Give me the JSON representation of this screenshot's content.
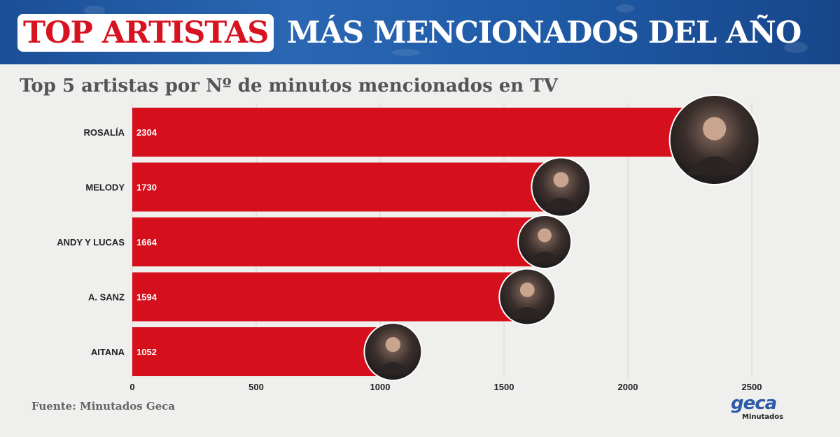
{
  "header": {
    "title_highlight": "TOP ARTISTAS",
    "title_rest": "MÁS MENCIONADOS DEL AÑO"
  },
  "source": "Fuente: Minutados Geca",
  "logo": {
    "word": "geca",
    "sub": "Minutados"
  },
  "colors": {
    "bar": "#d50f1b",
    "title_red": "#d7131f",
    "header_blue": "#1f5aa6",
    "logo_blue": "#2c5aa8"
  },
  "chart_data": {
    "type": "bar",
    "orientation": "horizontal",
    "title": "Top 5 artistas por Nº de minutos mencionados en TV",
    "categories": [
      "ROSALÍA",
      "MELODY",
      "ANDY Y LUCAS",
      "A. SANZ",
      "AITANA"
    ],
    "values": [
      2304,
      1730,
      1664,
      1594,
      1052
    ],
    "xlim": [
      0,
      2500
    ],
    "x_ticks": [
      0,
      500,
      1000,
      1500,
      2000,
      2500
    ],
    "grid": true,
    "data_labels": true,
    "artist_photos": true
  }
}
